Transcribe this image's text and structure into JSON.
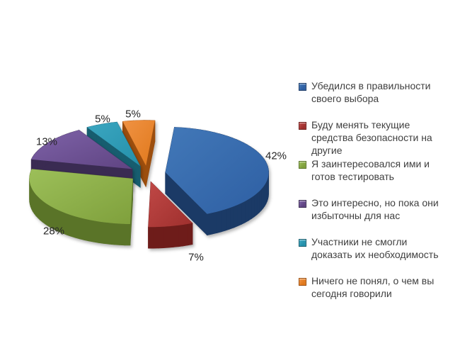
{
  "chart_data": {
    "type": "pie",
    "style": "3d-exploded",
    "title": "",
    "background": "#ffffff",
    "legend_position": "right",
    "text_color": "#3f3f3f",
    "slices": [
      {
        "label": "Убедился  в правильности\nсвоего выбора",
        "value": 42,
        "percent_label": "42%",
        "color": "#2E5FA3",
        "color_light": "#4278B8",
        "color_side": "#1B3A66"
      },
      {
        "label": "Буду менять текущие\nсредства безопасности на\nдругие",
        "value": 7,
        "percent_label": "7%",
        "color": "#9E2F2D",
        "color_light": "#C04846",
        "color_side": "#6E1C1A"
      },
      {
        "label": "Я заинтересовался ими и\nготов тестировать",
        "value": 28,
        "percent_label": "28%",
        "color": "#7FA03C",
        "color_light": "#9CBF59",
        "color_side": "#5A7428"
      },
      {
        "label": "Это интересно, но пока они\nизбыточны для нас",
        "value": 13,
        "percent_label": "13%",
        "color": "#5F4482",
        "color_light": "#7E62A8",
        "color_side": "#3A2B52"
      },
      {
        "label": "Участники не смогли\nдоказать их необходимость",
        "value": 5,
        "percent_label": "5%",
        "color": "#2490AB",
        "color_light": "#3BA6C0",
        "color_side": "#175D6F"
      },
      {
        "label": "Ничего не понял, о чем вы\nсегодня говорили",
        "value": 5,
        "percent_label": "5%",
        "color": "#E0791C",
        "color_light": "#F09243",
        "color_side": "#9C4E0E"
      }
    ]
  }
}
